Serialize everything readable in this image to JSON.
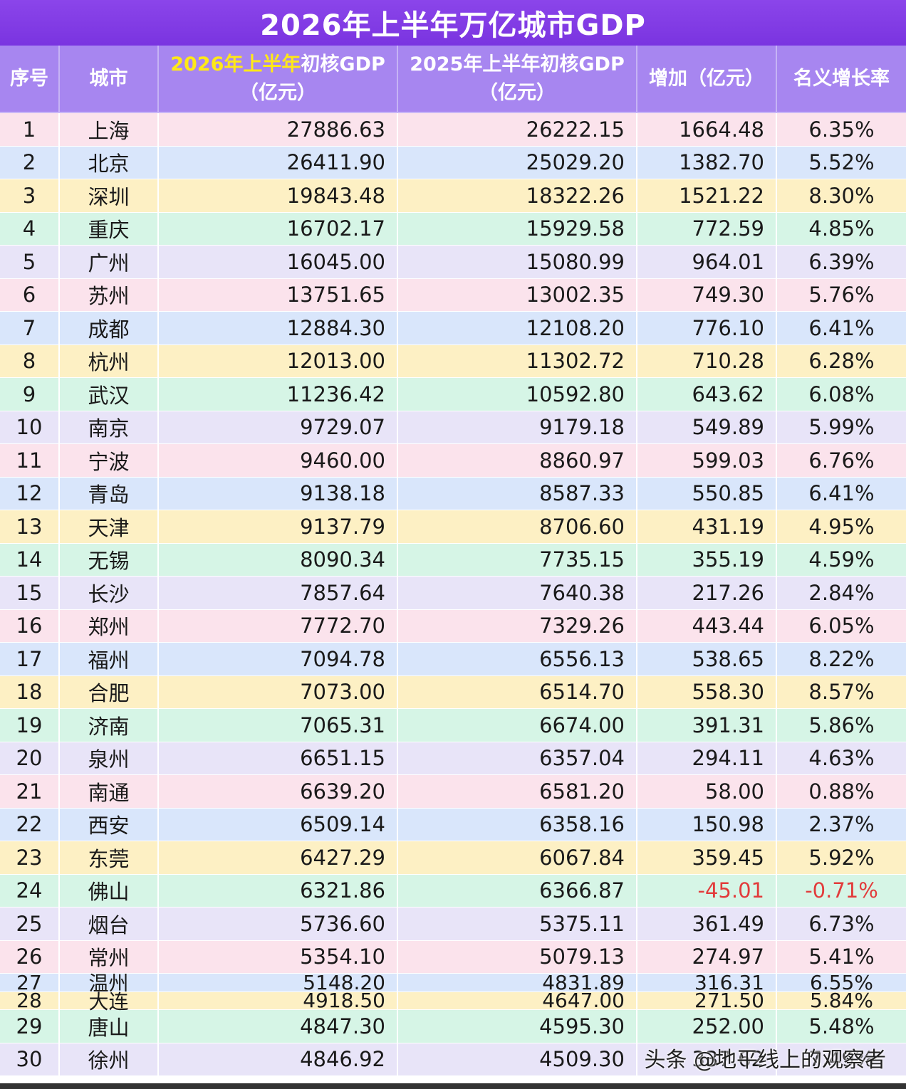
{
  "title": "2026年上半年万亿城市GDP",
  "headers": {
    "index": "序号",
    "city": "城市",
    "gdp2026_hl": "2026年上半年",
    "gdp2026_rest": "初核GDP",
    "gdp2026_unit": "（亿元）",
    "gdp2025_line1": "2025年上半年初核GDP",
    "gdp2025_unit": "（亿元）",
    "increase": "增加（亿元）",
    "growth": "名义增长率"
  },
  "rows": [
    {
      "no": "1",
      "city": "上海",
      "gdp2026": "27886.63",
      "gdp2025": "26222.15",
      "inc": "1664.48",
      "rate": "6.35%"
    },
    {
      "no": "2",
      "city": "北京",
      "gdp2026": "26411.90",
      "gdp2025": "25029.20",
      "inc": "1382.70",
      "rate": "5.52%"
    },
    {
      "no": "3",
      "city": "深圳",
      "gdp2026": "19843.48",
      "gdp2025": "18322.26",
      "inc": "1521.22",
      "rate": "8.30%"
    },
    {
      "no": "4",
      "city": "重庆",
      "gdp2026": "16702.17",
      "gdp2025": "15929.58",
      "inc": "772.59",
      "rate": "4.85%"
    },
    {
      "no": "5",
      "city": "广州",
      "gdp2026": "16045.00",
      "gdp2025": "15080.99",
      "inc": "964.01",
      "rate": "6.39%"
    },
    {
      "no": "6",
      "city": "苏州",
      "gdp2026": "13751.65",
      "gdp2025": "13002.35",
      "inc": "749.30",
      "rate": "5.76%"
    },
    {
      "no": "7",
      "city": "成都",
      "gdp2026": "12884.30",
      "gdp2025": "12108.20",
      "inc": "776.10",
      "rate": "6.41%"
    },
    {
      "no": "8",
      "city": "杭州",
      "gdp2026": "12013.00",
      "gdp2025": "11302.72",
      "inc": "710.28",
      "rate": "6.28%"
    },
    {
      "no": "9",
      "city": "武汉",
      "gdp2026": "11236.42",
      "gdp2025": "10592.80",
      "inc": "643.62",
      "rate": "6.08%"
    },
    {
      "no": "10",
      "city": "南京",
      "gdp2026": "9729.07",
      "gdp2025": "9179.18",
      "inc": "549.89",
      "rate": "5.99%"
    },
    {
      "no": "11",
      "city": "宁波",
      "gdp2026": "9460.00",
      "gdp2025": "8860.97",
      "inc": "599.03",
      "rate": "6.76%"
    },
    {
      "no": "12",
      "city": "青岛",
      "gdp2026": "9138.18",
      "gdp2025": "8587.33",
      "inc": "550.85",
      "rate": "6.41%"
    },
    {
      "no": "13",
      "city": "天津",
      "gdp2026": "9137.79",
      "gdp2025": "8706.60",
      "inc": "431.19",
      "rate": "4.95%"
    },
    {
      "no": "14",
      "city": "无锡",
      "gdp2026": "8090.34",
      "gdp2025": "7735.15",
      "inc": "355.19",
      "rate": "4.59%"
    },
    {
      "no": "15",
      "city": "长沙",
      "gdp2026": "7857.64",
      "gdp2025": "7640.38",
      "inc": "217.26",
      "rate": "2.84%"
    },
    {
      "no": "16",
      "city": "郑州",
      "gdp2026": "7772.70",
      "gdp2025": "7329.26",
      "inc": "443.44",
      "rate": "6.05%"
    },
    {
      "no": "17",
      "city": "福州",
      "gdp2026": "7094.78",
      "gdp2025": "6556.13",
      "inc": "538.65",
      "rate": "8.22%"
    },
    {
      "no": "18",
      "city": "合肥",
      "gdp2026": "7073.00",
      "gdp2025": "6514.70",
      "inc": "558.30",
      "rate": "8.57%"
    },
    {
      "no": "19",
      "city": "济南",
      "gdp2026": "7065.31",
      "gdp2025": "6674.00",
      "inc": "391.31",
      "rate": "5.86%"
    },
    {
      "no": "20",
      "city": "泉州",
      "gdp2026": "6651.15",
      "gdp2025": "6357.04",
      "inc": "294.11",
      "rate": "4.63%"
    },
    {
      "no": "21",
      "city": "南通",
      "gdp2026": "6639.20",
      "gdp2025": "6581.20",
      "inc": "58.00",
      "rate": "0.88%"
    },
    {
      "no": "22",
      "city": "西安",
      "gdp2026": "6509.14",
      "gdp2025": "6358.16",
      "inc": "150.98",
      "rate": "2.37%"
    },
    {
      "no": "23",
      "city": "东莞",
      "gdp2026": "6427.29",
      "gdp2025": "6067.84",
      "inc": "359.45",
      "rate": "5.92%"
    },
    {
      "no": "24",
      "city": "佛山",
      "gdp2026": "6321.86",
      "gdp2025": "6366.87",
      "inc": "-45.01",
      "rate": "-0.71%",
      "negative": true
    },
    {
      "no": "25",
      "city": "烟台",
      "gdp2026": "5736.60",
      "gdp2025": "5375.11",
      "inc": "361.49",
      "rate": "6.73%"
    },
    {
      "no": "26",
      "city": "常州",
      "gdp2026": "5354.10",
      "gdp2025": "5079.13",
      "inc": "274.97",
      "rate": "5.41%"
    },
    {
      "no": "27",
      "city": "温州",
      "gdp2026": "5148.20",
      "gdp2025": "4831.89",
      "inc": "316.31",
      "rate": "6.55%"
    },
    {
      "no": "28",
      "city": "大连",
      "gdp2026": "4918.50",
      "gdp2025": "4647.00",
      "inc": "271.50",
      "rate": "5.84%"
    },
    {
      "no": "29",
      "city": "唐山",
      "gdp2026": "4847.30",
      "gdp2025": "4595.30",
      "inc": "252.00",
      "rate": "5.48%"
    },
    {
      "no": "30",
      "city": "徐州",
      "gdp2026": "4846.92",
      "gdp2025": "4509.30",
      "inc": "337.62",
      "rate": "7.49%"
    }
  ],
  "watermark": "头条 @地平线上的观察者",
  "colors": {
    "title_bg": "#7a34e0",
    "header_bg": "#a786f0",
    "header_highlight": "#ffe818",
    "negative": "#e23b3b",
    "row_palette": [
      "#fbe3ec",
      "#d9e6fb",
      "#fdf0c4",
      "#d6f5e6",
      "#e8e4f8"
    ]
  }
}
